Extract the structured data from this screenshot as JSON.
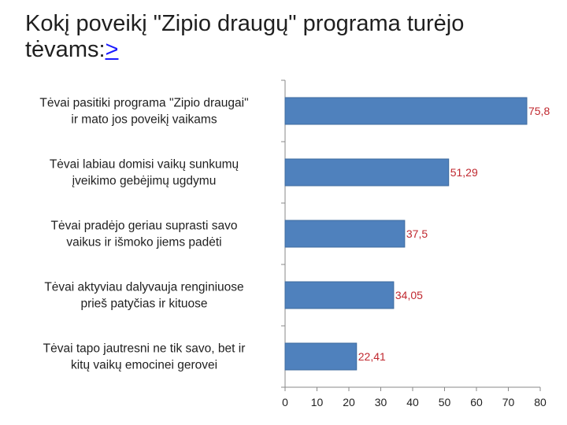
{
  "title": {
    "line1": "Kokį poveikį \"Zipio draugų\" programa  turėjo",
    "line2": "tėvams:",
    "link": ">"
  },
  "colors": {
    "bar": "#4f81bd",
    "bar_border": "#3d6a9e",
    "data_label": "#c0282f",
    "axis": "#888888"
  },
  "chart_data": {
    "type": "bar",
    "orientation": "horizontal",
    "title": "Kokį poveikį \"Zipio draugų\" programa turėjo tėvams:",
    "categories": [
      [
        "Tėvai pasitiki programa \"Zipio draugai\"",
        "ir mato jos poveikį vaikams"
      ],
      [
        "Tėvai labiau domisi vaikų sunkumų",
        "įveikimo gebėjimų ugdymu"
      ],
      [
        "Tėvai pradėjo geriau suprasti savo",
        "vaikus ir išmoko jiems padėti"
      ],
      [
        "Tėvai aktyviau dalyvauja renginiuose",
        "prieš patyčias ir kituose"
      ],
      [
        "Tėvai tapo jautresni ne tik savo, bet ir",
        "kitų vaikų emocinei gerovei"
      ]
    ],
    "values": [
      75.8,
      51.29,
      37.5,
      34.05,
      22.41
    ],
    "data_labels": [
      "75,8",
      "51,29",
      "37,5",
      "34,05",
      "22,41"
    ],
    "xlim": [
      0,
      80
    ],
    "xticks": [
      0,
      10,
      20,
      30,
      40,
      50,
      60,
      70,
      80
    ],
    "xlabel": "",
    "ylabel": "",
    "grid": false,
    "legend": "none"
  }
}
